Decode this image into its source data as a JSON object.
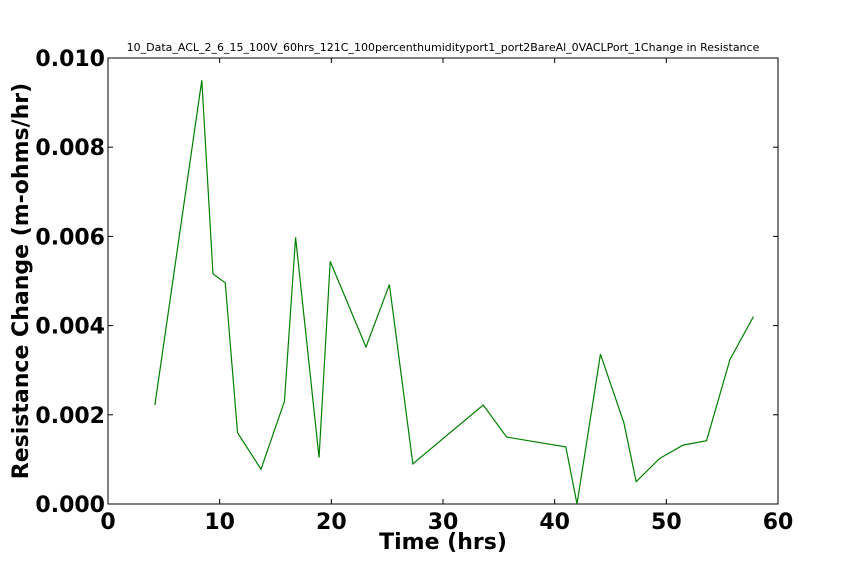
{
  "chart_data": {
    "type": "line",
    "title": "10_Data_ACL_2_6_15_100V_60hrs_121C_100percenthumidityport1_port2BareAl_0VACLPort_1Change in Resistance",
    "xlabel": "Time (hrs)",
    "ylabel": "Resistance Change (m-ohms/hr)",
    "xlim": [
      0,
      60
    ],
    "ylim": [
      0,
      0.01
    ],
    "x_ticks": [
      0,
      10,
      20,
      30,
      40,
      50,
      60
    ],
    "x_tick_labels": [
      "0",
      "10",
      "20",
      "30",
      "40",
      "50",
      "60"
    ],
    "y_ticks": [
      0,
      0.002,
      0.004,
      0.006,
      0.008,
      0.01
    ],
    "y_tick_labels": [
      "0.000",
      "0.002",
      "0.004",
      "0.006",
      "0.008",
      "0.010"
    ],
    "grid": false,
    "line_color": "#008000",
    "series": [
      {
        "x": [
          4.2,
          8.4,
          9.4,
          10.5,
          11.6,
          13.7,
          15.8,
          16.8,
          18.9,
          19.9,
          23.1,
          25.2,
          27.3,
          33.6,
          35.7,
          41.0,
          42.0,
          44.1,
          46.2,
          47.3,
          49.4,
          51.5,
          53.6,
          55.7,
          57.8
        ],
        "y": [
          0.00222,
          0.0095,
          0.00516,
          0.00496,
          0.0016,
          0.00078,
          0.0023,
          0.00598,
          0.00104,
          0.00544,
          0.00352,
          0.00492,
          0.0009,
          0.00222,
          0.0015,
          0.00128,
          0.0,
          0.00336,
          0.00182,
          0.0005,
          0.00102,
          0.00132,
          0.00142,
          0.00324,
          0.0042
        ]
      }
    ]
  }
}
